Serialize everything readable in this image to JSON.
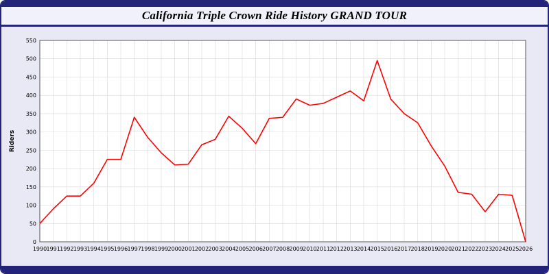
{
  "title": "California Triple Crown Ride History GRAND TOUR",
  "colors": {
    "frame_navy": "#23237a",
    "page_lavender": "#e9e9f5",
    "title_band_bg": "#f1f1fb",
    "plot_bg": "#ffffff",
    "grid": "#d9d9d9",
    "axis": "#555555",
    "line_red": "#ff0000",
    "text": "#000000"
  },
  "chart_data": {
    "type": "line",
    "title": "California Triple Crown Ride History GRAND TOUR",
    "xlabel": "",
    "ylabel": "Riders",
    "ylim": [
      0,
      550
    ],
    "ytick_step": 50,
    "grid": "on",
    "legend": "none",
    "x": [
      1990,
      1991,
      1992,
      1993,
      1994,
      1995,
      1996,
      1997,
      1998,
      1999,
      2000,
      2001,
      2002,
      2003,
      2004,
      2005,
      2006,
      2007,
      2008,
      2009,
      2010,
      2011,
      2012,
      2013,
      2014,
      2015,
      2016,
      2017,
      2018,
      2019,
      2020,
      2021,
      2022,
      2023,
      2024,
      2025,
      2026
    ],
    "series": [
      {
        "name": "Riders",
        "color": "#ff0000",
        "values": [
          50,
          90,
          125,
          125,
          160,
          225,
          225,
          340,
          285,
          243,
          210,
          212,
          265,
          280,
          343,
          310,
          268,
          337,
          340,
          390,
          373,
          378,
          395,
          412,
          385,
          495,
          390,
          350,
          325,
          262,
          207,
          135,
          130,
          82,
          130,
          127,
          0
        ]
      }
    ]
  }
}
